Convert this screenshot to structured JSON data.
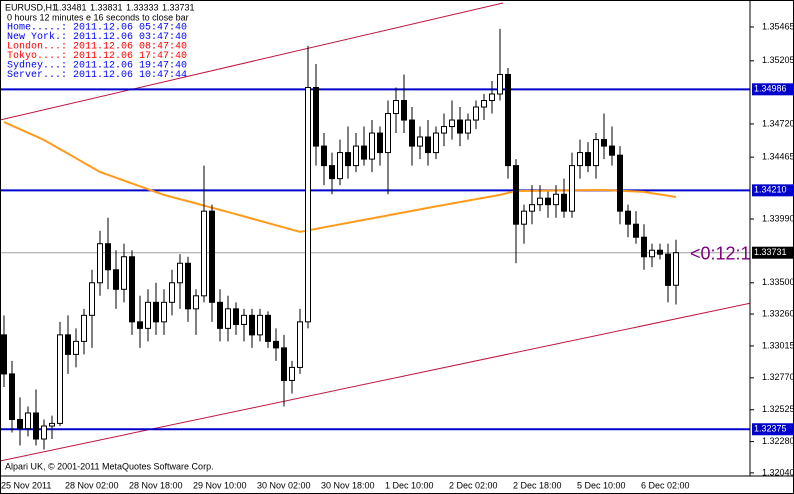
{
  "chart_data": {
    "type": "candlestick",
    "symbol": "EURUSD,H1",
    "countdown_note": "0 hours 12 minutes e 16 seconds to close bar",
    "timer": "<0:12:1",
    "timer_color": "#800080",
    "footer": "Alpari UK, © 2001-2011 MetaQuotes Software Corp.",
    "clocks": [
      {
        "label": "Home.....:",
        "time": "2011.12.06 05:47:40",
        "color": "#0000ff"
      },
      {
        "label": "New York.:",
        "time": "2011.12.06 03:47:40",
        "color": "#0000ff"
      },
      {
        "label": "London...:",
        "time": "2011.12.06 08:47:40",
        "color": "#ff0000"
      },
      {
        "label": "Tokyo....:",
        "time": "2011.12.06 17:47:40",
        "color": "#ff0000"
      },
      {
        "label": "Sydney...:",
        "time": "2011.12.06 19:47:40",
        "color": "#0000ff"
      },
      {
        "label": "Server...:",
        "time": "2011.12.06 10:47:44",
        "color": "#0000ff"
      }
    ],
    "categories": [
      "25 Nov 2011",
      null,
      null,
      null,
      null,
      null,
      null,
      null,
      "28 Nov 02:00",
      null,
      null,
      null,
      null,
      null,
      null,
      null,
      "28 Nov 18:00",
      null,
      null,
      null,
      null,
      null,
      null,
      null,
      "29 Nov 10:00",
      null,
      null,
      null,
      null,
      null,
      null,
      null,
      "30 Nov 02:00",
      null,
      null,
      null,
      null,
      null,
      null,
      null,
      "30 Nov 18:00",
      null,
      null,
      null,
      null,
      null,
      null,
      null,
      "1 Dec 10:00",
      null,
      null,
      null,
      null,
      null,
      null,
      null,
      "2 Dec 02:00",
      null,
      null,
      null,
      null,
      null,
      null,
      null,
      "2 Dec 18:00",
      null,
      null,
      null,
      null,
      null,
      null,
      null,
      "5 Dec 10:00",
      null,
      null,
      null,
      null,
      null,
      null,
      null,
      "6 Dec 02:00",
      null,
      null,
      null,
      null
    ],
    "ohlc": [
      [
        1.331,
        1.3325,
        1.327,
        1.328
      ],
      [
        1.328,
        1.329,
        1.3235,
        1.3245
      ],
      [
        1.3245,
        1.3262,
        1.3225,
        1.3238
      ],
      [
        1.3238,
        1.3255,
        1.3232,
        1.325
      ],
      [
        1.325,
        1.3268,
        1.3225,
        1.323
      ],
      [
        1.323,
        1.3245,
        1.3222,
        1.324
      ],
      [
        1.324,
        1.3248,
        1.323,
        1.3242
      ],
      [
        1.3242,
        1.332,
        1.324,
        1.331
      ],
      [
        1.331,
        1.3325,
        1.328,
        1.3295
      ],
      [
        1.3295,
        1.3315,
        1.3285,
        1.3305
      ],
      [
        1.3305,
        1.333,
        1.3295,
        1.3325
      ],
      [
        1.3325,
        1.336,
        1.33,
        1.335
      ],
      [
        1.335,
        1.339,
        1.334,
        1.338
      ],
      [
        1.338,
        1.34,
        1.3345,
        1.336
      ],
      [
        1.336,
        1.3375,
        1.333,
        1.3345
      ],
      [
        1.3345,
        1.338,
        1.3335,
        1.337
      ],
      [
        1.337,
        1.3375,
        1.331,
        1.332
      ],
      [
        1.332,
        1.334,
        1.33,
        1.3315
      ],
      [
        1.3315,
        1.3345,
        1.3305,
        1.3335
      ],
      [
        1.3335,
        1.335,
        1.331,
        1.332
      ],
      [
        1.332,
        1.3345,
        1.331,
        1.3335
      ],
      [
        1.3335,
        1.336,
        1.3325,
        1.335
      ],
      [
        1.335,
        1.3372,
        1.333,
        1.3365
      ],
      [
        1.3365,
        1.337,
        1.332,
        1.333
      ],
      [
        1.333,
        1.3345,
        1.331,
        1.334
      ],
      [
        1.334,
        1.344,
        1.3335,
        1.3405
      ],
      [
        1.3405,
        1.341,
        1.332,
        1.3335
      ],
      [
        1.3335,
        1.3345,
        1.3305,
        1.3315
      ],
      [
        1.3315,
        1.334,
        1.3305,
        1.333
      ],
      [
        1.333,
        1.3335,
        1.331,
        1.3318
      ],
      [
        1.3318,
        1.333,
        1.3305,
        1.3325
      ],
      [
        1.3325,
        1.333,
        1.33,
        1.331
      ],
      [
        1.331,
        1.333,
        1.3305,
        1.3325
      ],
      [
        1.3325,
        1.3328,
        1.33,
        1.3305
      ],
      [
        1.3305,
        1.3315,
        1.329,
        1.33
      ],
      [
        1.33,
        1.331,
        1.3255,
        1.3275
      ],
      [
        1.3275,
        1.329,
        1.3265,
        1.3285
      ],
      [
        1.3285,
        1.333,
        1.328,
        1.332
      ],
      [
        1.332,
        1.3532,
        1.3315,
        1.35
      ],
      [
        1.35,
        1.3518,
        1.344,
        1.3455
      ],
      [
        1.3455,
        1.3465,
        1.3425,
        1.344
      ],
      [
        1.344,
        1.345,
        1.3418,
        1.343
      ],
      [
        1.343,
        1.346,
        1.3425,
        1.345
      ],
      [
        1.345,
        1.347,
        1.343,
        1.344
      ],
      [
        1.344,
        1.3465,
        1.3435,
        1.3455
      ],
      [
        1.3455,
        1.347,
        1.344,
        1.3445
      ],
      [
        1.3445,
        1.3475,
        1.3435,
        1.3465
      ],
      [
        1.3465,
        1.347,
        1.344,
        1.345
      ],
      [
        1.345,
        1.349,
        1.3418,
        1.348
      ],
      [
        1.348,
        1.35,
        1.3465,
        1.349
      ],
      [
        1.349,
        1.351,
        1.3465,
        1.3475
      ],
      [
        1.3475,
        1.3485,
        1.344,
        1.3455
      ],
      [
        1.3455,
        1.347,
        1.3445,
        1.3462
      ],
      [
        1.3462,
        1.3475,
        1.344,
        1.345
      ],
      [
        1.345,
        1.347,
        1.3445,
        1.3465
      ],
      [
        1.3465,
        1.348,
        1.3455,
        1.347
      ],
      [
        1.347,
        1.349,
        1.346,
        1.3475
      ],
      [
        1.3475,
        1.3485,
        1.3455,
        1.3465
      ],
      [
        1.3465,
        1.348,
        1.346,
        1.3475
      ],
      [
        1.3475,
        1.349,
        1.3468,
        1.3485
      ],
      [
        1.3485,
        1.3495,
        1.3475,
        1.349
      ],
      [
        1.349,
        1.3505,
        1.348,
        1.3495
      ],
      [
        1.3495,
        1.3545,
        1.349,
        1.351
      ],
      [
        1.351,
        1.3515,
        1.343,
        1.344
      ],
      [
        1.344,
        1.3445,
        1.3365,
        1.3395
      ],
      [
        1.3395,
        1.341,
        1.338,
        1.3405
      ],
      [
        1.3405,
        1.3425,
        1.3395,
        1.341
      ],
      [
        1.341,
        1.3425,
        1.3405,
        1.3415
      ],
      [
        1.3415,
        1.342,
        1.34,
        1.341
      ],
      [
        1.341,
        1.3425,
        1.34,
        1.3418
      ],
      [
        1.3418,
        1.343,
        1.34,
        1.3405
      ],
      [
        1.3405,
        1.345,
        1.34,
        1.344
      ],
      [
        1.344,
        1.346,
        1.343,
        1.345
      ],
      [
        1.345,
        1.3458,
        1.3435,
        1.344
      ],
      [
        1.344,
        1.3465,
        1.343,
        1.346
      ],
      [
        1.346,
        1.348,
        1.3445,
        1.3455
      ],
      [
        1.3455,
        1.347,
        1.344,
        1.3448
      ],
      [
        1.3448,
        1.3455,
        1.3395,
        1.3405
      ],
      [
        1.3405,
        1.341,
        1.3385,
        1.3395
      ],
      [
        1.3395,
        1.3405,
        1.338,
        1.3385
      ],
      [
        1.3385,
        1.3395,
        1.336,
        1.337
      ],
      [
        1.337,
        1.338,
        1.3362,
        1.3375
      ],
      [
        1.3375,
        1.338,
        1.3368,
        1.3372
      ],
      [
        1.3372,
        1.338,
        1.3335,
        1.3348
      ],
      [
        1.33481,
        1.33831,
        1.33333,
        1.33731
      ]
    ],
    "bull_color": "#ffffff",
    "bear_color": "#000000",
    "ma": {
      "color": "#ff9a1a",
      "values": [
        1.34735,
        1.34707,
        1.3468,
        1.34652,
        1.34625,
        1.34597,
        1.34562,
        1.34527,
        1.34492,
        1.34457,
        1.34421,
        1.34386,
        1.34351,
        1.34329,
        1.34307,
        1.34285,
        1.34263,
        1.34241,
        1.34219,
        1.34197,
        1.34175,
        1.34159,
        1.34142,
        1.34126,
        1.3411,
        1.34093,
        1.34077,
        1.3406,
        1.34044,
        1.34027,
        1.3401,
        1.33993,
        1.33976,
        1.33959,
        1.33942,
        1.33925,
        1.33908,
        1.33891,
        1.33903,
        1.33914,
        1.33926,
        1.33937,
        1.33949,
        1.3396,
        1.33972,
        1.33983,
        1.33995,
        1.34006,
        1.34018,
        1.34029,
        1.34041,
        1.34052,
        1.34064,
        1.34075,
        1.34087,
        1.34098,
        1.34109,
        1.3412,
        1.34131,
        1.34142,
        1.34153,
        1.34164,
        1.34175,
        1.3419,
        1.34205,
        1.34206,
        1.34206,
        1.34207,
        1.34208,
        1.34209,
        1.34209,
        1.3421,
        1.34211,
        1.34212,
        1.34212,
        1.34213,
        1.3421,
        1.34207,
        1.34204,
        1.34201,
        1.34198,
        1.34188,
        1.34178,
        1.34169,
        1.34159
      ]
    },
    "levels": [
      1.34986,
      {
        "value": 1.3421,
        "label": "1.34210"
      },
      1.32375
    ],
    "level_color": "#0000cc",
    "ylim": [
      1.32016,
      1.35672
    ],
    "yticks": [
      1.35465,
      1.35205,
      {
        "value": 1.3472,
        "label": "1.34720"
      },
      1.34465,
      {
        "value": 1.3399,
        "label": "1.33990"
      },
      {
        "value": 1.335,
        "label": "1.33500"
      },
      {
        "value": 1.3326,
        "label": "1.33260"
      },
      1.33015,
      {
        "value": 1.3277,
        "label": "1.32770"
      },
      1.32525,
      {
        "value": 1.3228,
        "label": "1.32280"
      },
      {
        "value": 1.3204,
        "label": "1.32040"
      }
    ]
  }
}
